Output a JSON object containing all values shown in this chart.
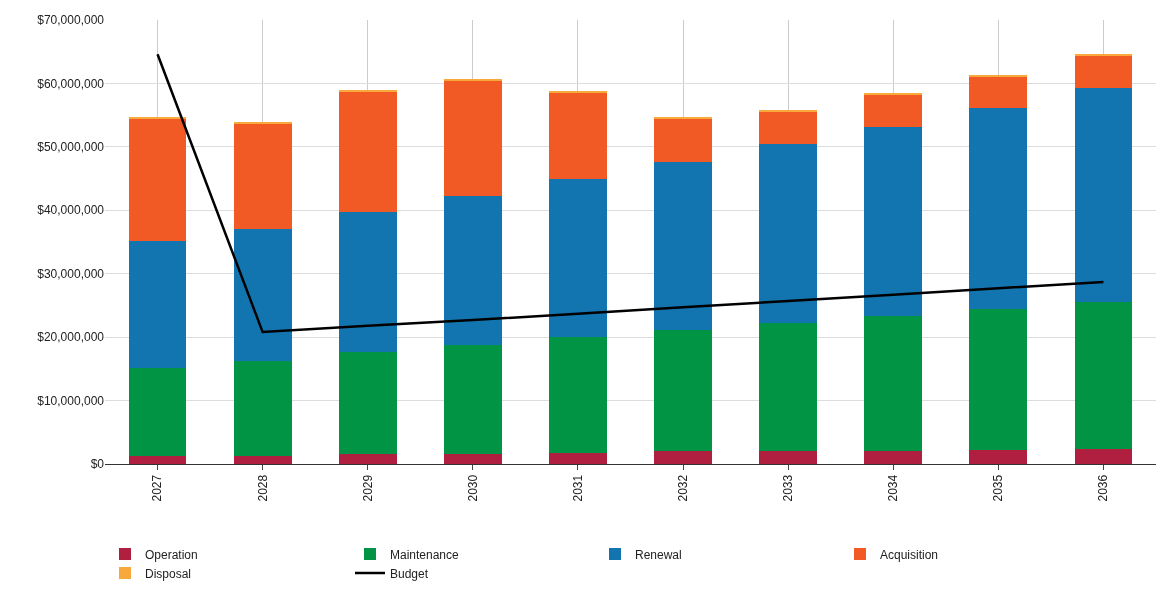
{
  "chart_data": {
    "type": "bar",
    "stacked": true,
    "grid": true,
    "legend": "bottom",
    "marker": "none",
    "categories": [
      "2027",
      "2028",
      "2029",
      "2030",
      "2031",
      "2032",
      "2033",
      "2034",
      "2035",
      "2036"
    ],
    "ylim": [
      0,
      70000000
    ],
    "yticks": [
      {
        "value": 0,
        "label": "$0"
      },
      {
        "value": 10000000,
        "label": "$10,000,000"
      },
      {
        "value": 20000000,
        "label": "$20,000,000"
      },
      {
        "value": 30000000,
        "label": "$30,000,000"
      },
      {
        "value": 40000000,
        "label": "$40,000,000"
      },
      {
        "value": 50000000,
        "label": "$50,000,000"
      },
      {
        "value": 60000000,
        "label": "$60,000,000"
      },
      {
        "value": 70000000,
        "label": "$70,000,000"
      }
    ],
    "series": [
      {
        "name": "Operation",
        "color": "#b01f3f",
        "values": [
          1300000,
          1300000,
          1600000,
          1600000,
          1800000,
          2000000,
          2000000,
          2100000,
          2200000,
          2400000
        ]
      },
      {
        "name": "Maintenance",
        "color": "#009444",
        "values": [
          13800000,
          15000000,
          16000000,
          17200000,
          18200000,
          19100000,
          20200000,
          21200000,
          22200000,
          23200000
        ]
      },
      {
        "name": "Renewal",
        "color": "#1375b0",
        "values": [
          20000000,
          20800000,
          22200000,
          23500000,
          25000000,
          26500000,
          28200000,
          29900000,
          31700000,
          33700000
        ]
      },
      {
        "name": "Acquisition",
        "color": "#f15a24",
        "values": [
          19400000,
          16600000,
          19000000,
          18200000,
          13500000,
          6900000,
          5100000,
          5000000,
          5000000,
          5100000
        ]
      },
      {
        "name": "Disposal",
        "color": "#f9a93c",
        "values": [
          200000,
          200000,
          200000,
          200000,
          200000,
          100000,
          200000,
          200000,
          100000,
          100000
        ]
      },
      {
        "name": "Budget",
        "type": "line",
        "line_style": "solid",
        "color": "#000000",
        "values": [
          64600000,
          20800000,
          21800000,
          22700000,
          23700000,
          24700000,
          25700000,
          26700000,
          27700000,
          28700000
        ]
      }
    ]
  }
}
